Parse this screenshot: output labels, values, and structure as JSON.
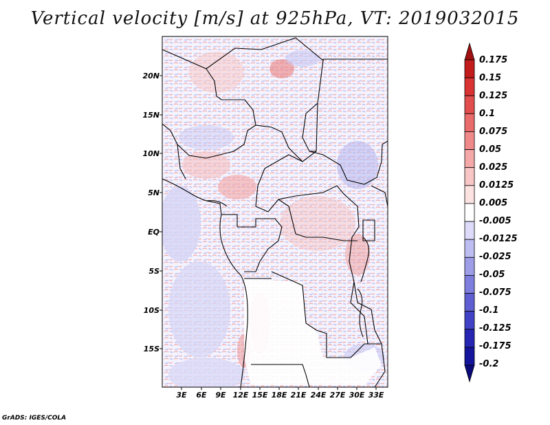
{
  "title": "Vertical velocity [m/s] at 925hPa, VT: 2019032015",
  "footer": "GrADS: IGES/COLA",
  "map": {
    "lat_labels": [
      "20N",
      "15N",
      "10N",
      "5N",
      "EQ",
      "5S",
      "10S",
      "15S"
    ],
    "lon_labels": [
      "3E",
      "6E",
      "9E",
      "12E",
      "15E",
      "18E",
      "21E",
      "24E",
      "27E",
      "30E",
      "33E"
    ]
  },
  "colorbar": {
    "labels": [
      "0.175",
      "0.15",
      "0.125",
      "0.1",
      "0.075",
      "0.05",
      "0.025",
      "0.0125",
      "0.005",
      "-0.005",
      "-0.0125",
      "-0.025",
      "-0.05",
      "-0.075",
      "-0.1",
      "-0.125",
      "-0.175",
      "-0.2"
    ],
    "colors": [
      "#a01010",
      "#c21c1c",
      "#d93333",
      "#e24e4e",
      "#ea6b6b",
      "#f08a8a",
      "#f5a8a8",
      "#f9c6c6",
      "#fde2e2",
      "#ffffff",
      "#dcdcfa",
      "#bdbdf2",
      "#9d9de8",
      "#7e7ede",
      "#5f5fd3",
      "#4242c6",
      "#2626b3",
      "#14149c",
      "#0a0a7a"
    ]
  }
}
